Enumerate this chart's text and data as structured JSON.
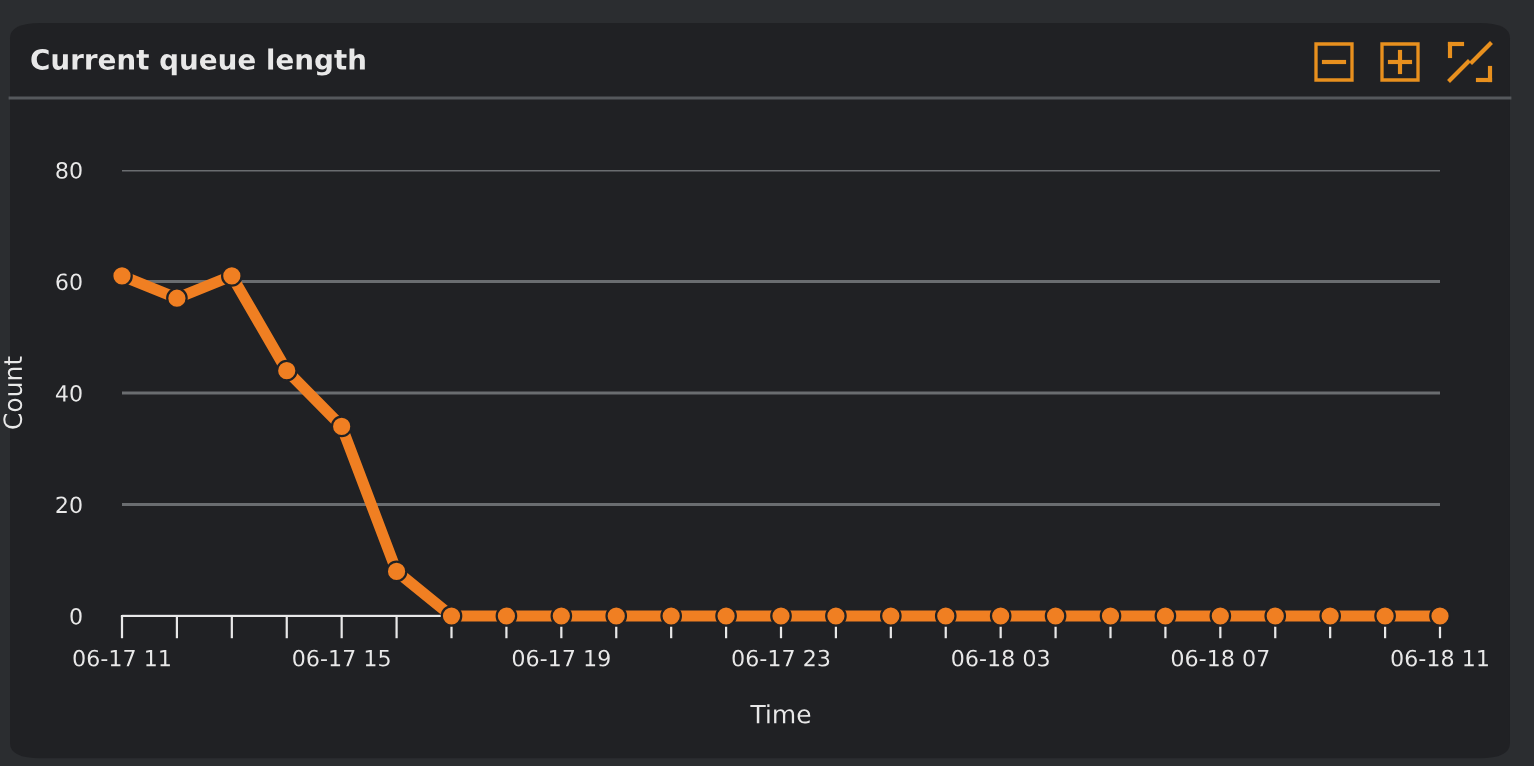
{
  "chart_data": {
    "type": "line",
    "title": "Current queue length",
    "xlabel": "Time",
    "ylabel": "Count",
    "categories": [
      "06-17 11",
      null,
      null,
      null,
      "06-17 15",
      null,
      null,
      null,
      "06-17 19",
      null,
      null,
      null,
      "06-17 23",
      null,
      null,
      null,
      "06-18 03",
      null,
      null,
      null,
      "06-18 07",
      null,
      null,
      null,
      "06-18 11"
    ],
    "series": [
      {
        "color": "#f07f22",
        "values": [
          61,
          57,
          61,
          44,
          34,
          8,
          0,
          0,
          0,
          0,
          0,
          0,
          0,
          0,
          0,
          0,
          0,
          0,
          0,
          0,
          0,
          0,
          0,
          0,
          0
        ]
      }
    ],
    "ylim": [
      0,
      80
    ],
    "yticks": [
      0,
      20,
      40,
      60,
      80
    ],
    "grid": "y",
    "marker": "circle",
    "line_style": "solid"
  }
}
